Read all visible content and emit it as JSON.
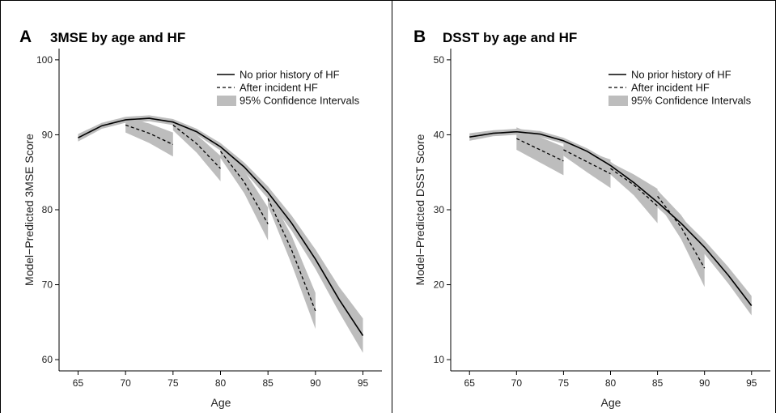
{
  "chart_data": [
    {
      "panel": "A",
      "title": "3MSE by age and HF",
      "type": "line",
      "xlabel": "Age",
      "ylabel": "Model−Predicted 3MSE Score",
      "xlim": [
        63,
        97
      ],
      "ylim": [
        58.5,
        101.5
      ],
      "xticks": [
        65,
        70,
        75,
        80,
        85,
        90,
        95
      ],
      "yticks": [
        60,
        70,
        80,
        90,
        100
      ],
      "legend": {
        "position": "top-right",
        "entries": [
          "No prior history of HF",
          "After incident HF",
          "95% Confidence Intervals"
        ]
      },
      "grid": false,
      "series": [
        {
          "name": "No prior history of HF",
          "style": "solid",
          "x": [
            65,
            67.5,
            70,
            72.5,
            75,
            77.5,
            80,
            82.5,
            85,
            87.5,
            90,
            92.5,
            95
          ],
          "y": [
            89.6,
            91.2,
            92.0,
            92.2,
            91.7,
            90.4,
            88.4,
            85.7,
            82.3,
            78.2,
            73.4,
            68.0,
            63.2
          ],
          "ci_halfwidth": [
            0.5,
            0.4,
            0.4,
            0.4,
            0.4,
            0.4,
            0.5,
            0.6,
            0.8,
            1.0,
            1.3,
            1.7,
            2.3
          ]
        },
        {
          "name": "After incident HF",
          "style": "dashed",
          "segments": [
            {
              "x": [
                70,
                72.5,
                75
              ],
              "y": [
                91.3,
                90.2,
                88.7
              ],
              "ci_halfwidth": [
                1.0,
                1.3,
                1.6
              ]
            },
            {
              "x": [
                75,
                77.5,
                80
              ],
              "y": [
                91.3,
                88.8,
                85.5
              ],
              "ci_halfwidth": [
                0.7,
                1.2,
                1.7
              ]
            },
            {
              "x": [
                80,
                82.5,
                85
              ],
              "y": [
                87.8,
                83.7,
                78.1
              ],
              "ci_halfwidth": [
                0.9,
                1.5,
                2.2
              ]
            },
            {
              "x": [
                85,
                87.5,
                90
              ],
              "y": [
                81.5,
                74.6,
                66.5
              ],
              "ci_halfwidth": [
                1.0,
                1.9,
                2.4
              ]
            }
          ]
        }
      ]
    },
    {
      "panel": "B",
      "title": "DSST by age and HF",
      "type": "line",
      "xlabel": "Age",
      "ylabel": "Model−Predicted DSST Score",
      "xlim": [
        63,
        97
      ],
      "ylim": [
        8.5,
        51.5
      ],
      "xticks": [
        65,
        70,
        75,
        80,
        85,
        90,
        95
      ],
      "yticks": [
        10,
        20,
        30,
        40,
        50
      ],
      "legend": {
        "position": "top-right",
        "entries": [
          "No prior history of HF",
          "After incident HF",
          "95% Confidence Intervals"
        ]
      },
      "grid": false,
      "series": [
        {
          "name": "No prior history of HF",
          "style": "solid",
          "x": [
            65,
            67.5,
            70,
            72.5,
            75,
            77.5,
            80,
            82.5,
            85,
            87.5,
            90,
            92.5,
            95
          ],
          "y": [
            39.7,
            40.2,
            40.4,
            40.1,
            39.2,
            37.8,
            35.9,
            33.6,
            31.0,
            28.2,
            25.0,
            21.3,
            17.2
          ],
          "ci_halfwidth": [
            0.5,
            0.4,
            0.4,
            0.4,
            0.4,
            0.4,
            0.5,
            0.6,
            0.7,
            0.8,
            0.9,
            1.1,
            1.3
          ]
        },
        {
          "name": "After incident HF",
          "style": "dashed",
          "segments": [
            {
              "x": [
                70,
                72.5,
                75
              ],
              "y": [
                39.5,
                38.0,
                36.5
              ],
              "ci_halfwidth": [
                1.5,
                1.7,
                1.9
              ]
            },
            {
              "x": [
                75,
                77.5,
                80
              ],
              "y": [
                38.0,
                36.4,
                34.8
              ],
              "ci_halfwidth": [
                0.8,
                1.4,
                1.9
              ]
            },
            {
              "x": [
                80,
                82.5,
                85
              ],
              "y": [
                35.5,
                33.3,
                30.5
              ],
              "ci_halfwidth": [
                0.8,
                1.4,
                2.3
              ]
            },
            {
              "x": [
                85,
                87.5,
                90
              ],
              "y": [
                31.8,
                27.7,
                22.2
              ],
              "ci_halfwidth": [
                0.8,
                1.6,
                2.5
              ]
            }
          ]
        }
      ]
    }
  ],
  "colors": {
    "ci_band": "#bdbdbd",
    "line": "#000000",
    "axis": "#000000",
    "text": "#222222",
    "background": "#ffffff"
  }
}
